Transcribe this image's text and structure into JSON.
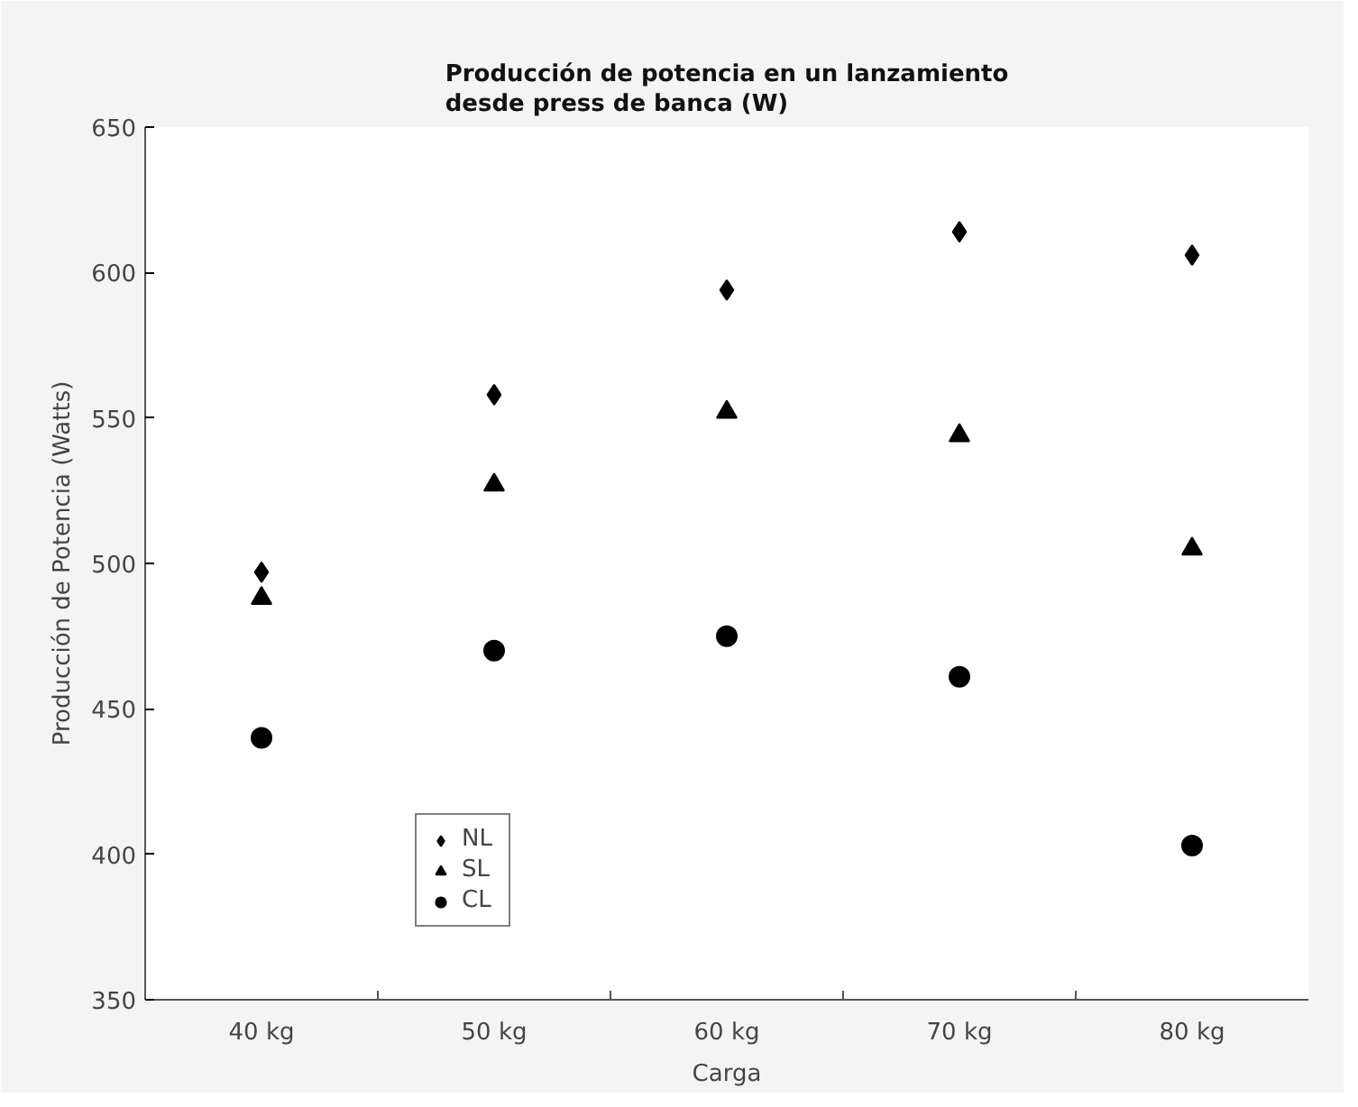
{
  "chart_data": {
    "type": "scatter",
    "title": "Producción de potencia en un lanzamiento\ndesde press de banca (W)",
    "xlabel": "Carga",
    "ylabel": "Producción de Potencia (Watts)",
    "categories": [
      "40 kg",
      "50 kg",
      "60 kg",
      "70 kg",
      "80 kg"
    ],
    "series": [
      {
        "name": "NL",
        "color": "#000000",
        "marker": "diamond",
        "values": [
          497,
          558,
          594,
          614,
          606
        ]
      },
      {
        "name": "SL",
        "color": "#000000",
        "marker": "triangle",
        "values": [
          488,
          527,
          552,
          544,
          505
        ]
      },
      {
        "name": "CL",
        "color": "#000000",
        "marker": "circle",
        "values": [
          440,
          470,
          475,
          461,
          403
        ]
      }
    ],
    "ylim": [
      350,
      650
    ],
    "yticks": [
      350,
      400,
      450,
      500,
      550,
      600,
      650
    ],
    "grid": false,
    "legend": "bottom left"
  }
}
